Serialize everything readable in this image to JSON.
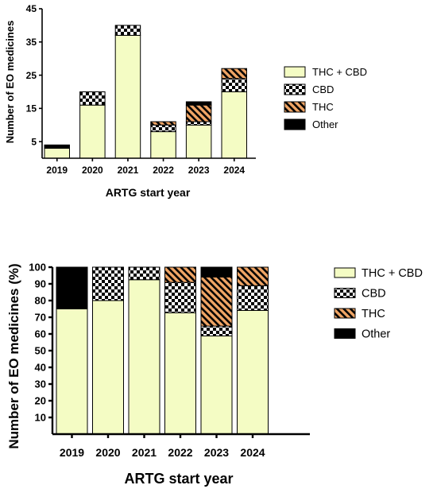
{
  "colors": {
    "thc_cbd": "#f4fcc4",
    "thc": "#f0a565",
    "other": "#000000",
    "checker_dark": "#000000",
    "checker_light": "#ffffff"
  },
  "legend_items": [
    {
      "label": "THC + CBD",
      "pattern": "solid-thc-cbd"
    },
    {
      "label": "CBD",
      "pattern": "checker"
    },
    {
      "label": "THC",
      "pattern": "hatch"
    },
    {
      "label": "Other",
      "pattern": "solid-other"
    }
  ],
  "chart_data": [
    {
      "type": "bar",
      "stacked": true,
      "categories": [
        "2019",
        "2020",
        "2021",
        "2022",
        "2023",
        "2024"
      ],
      "series": [
        {
          "name": "THC + CBD",
          "values": [
            3,
            16,
            37,
            8,
            10,
            20
          ]
        },
        {
          "name": "CBD",
          "values": [
            0,
            4,
            3,
            2,
            1,
            4
          ]
        },
        {
          "name": "THC",
          "values": [
            0,
            0,
            0,
            1,
            5,
            3
          ]
        },
        {
          "name": "Other",
          "values": [
            1,
            0,
            0,
            0,
            1,
            0
          ]
        }
      ],
      "xlabel": "ARTG start year",
      "ylabel": "Number of EO medicines",
      "ylim": [
        0,
        45
      ],
      "yticks": [
        5,
        15,
        25,
        35,
        45
      ],
      "legend": "right",
      "grid": false
    },
    {
      "type": "bar",
      "stacked": true,
      "categories": [
        "2019",
        "2020",
        "2021",
        "2022",
        "2023",
        "2024"
      ],
      "series": [
        {
          "name": "THC + CBD",
          "values": [
            75,
            80,
            92.5,
            72.7,
            58.8,
            74.1
          ]
        },
        {
          "name": "CBD",
          "values": [
            0,
            20,
            7.5,
            18.2,
            5.9,
            14.8
          ]
        },
        {
          "name": "THC",
          "values": [
            0,
            0,
            0,
            9.1,
            29.4,
            11.1
          ]
        },
        {
          "name": "Other",
          "values": [
            25,
            0,
            0,
            0,
            5.9,
            0
          ]
        }
      ],
      "xlabel": "ARTG start year",
      "ylabel": "Number of EO medicines (%)",
      "ylim": [
        0,
        100
      ],
      "yticks": [
        10,
        20,
        30,
        40,
        50,
        60,
        70,
        80,
        90,
        100
      ],
      "legend": "right",
      "grid": false
    }
  ]
}
